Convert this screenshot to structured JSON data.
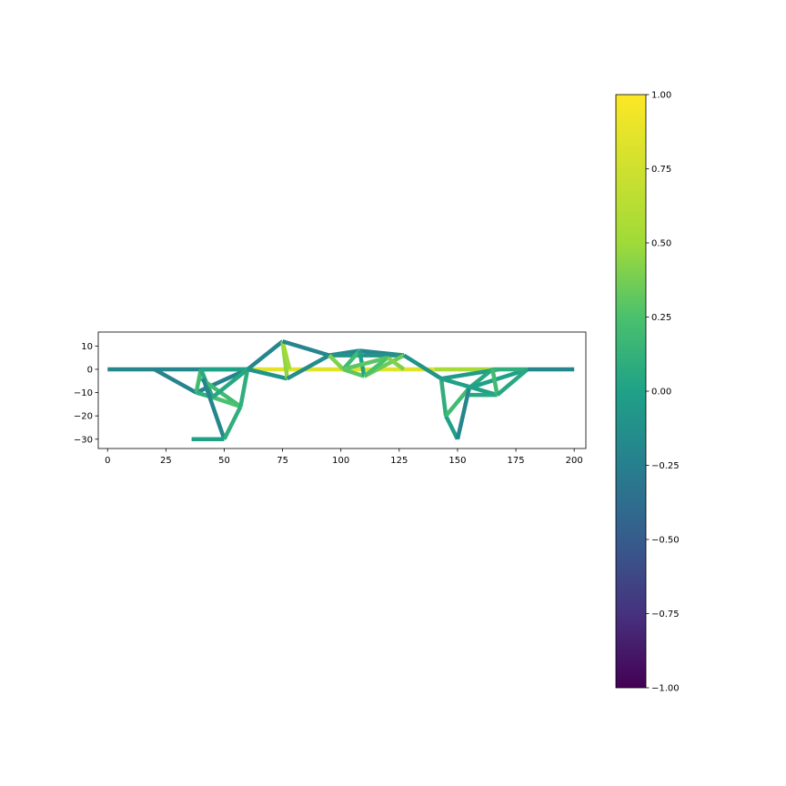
{
  "chart_data": [
    {
      "type": "line",
      "title": "",
      "xlabel": "",
      "ylabel": "",
      "xlim": [
        -4,
        205
      ],
      "ylim": [
        -34,
        16
      ],
      "xticks": [
        0,
        25,
        50,
        75,
        100,
        125,
        150,
        175,
        200
      ],
      "yticks": [
        10,
        0,
        -10,
        -20,
        -30
      ],
      "xtick_labels": [
        "0",
        "25",
        "50",
        "75",
        "100",
        "125",
        "150",
        "175",
        "200"
      ],
      "ytick_labels": [
        "10",
        "0",
        "−10",
        "−20",
        "−30"
      ],
      "grid": false,
      "color_scale": "viridis",
      "series": [
        {
          "x": [
            0,
            20
          ],
          "y": [
            0,
            0
          ],
          "value": -0.2
        },
        {
          "x": [
            20,
            60
          ],
          "y": [
            0,
            0
          ],
          "value": -0.2
        },
        {
          "x": [
            20,
            38
          ],
          "y": [
            0,
            -10
          ],
          "value": -0.22
        },
        {
          "x": [
            38,
            60
          ],
          "y": [
            -10,
            0
          ],
          "value": -0.22
        },
        {
          "x": [
            40,
            60
          ],
          "y": [
            0,
            0
          ],
          "value": 0.0
        },
        {
          "x": [
            40,
            38
          ],
          "y": [
            0,
            -10
          ],
          "value": 0.2
        },
        {
          "x": [
            38,
            45
          ],
          "y": [
            -10,
            -12
          ],
          "value": 0.1
        },
        {
          "x": [
            40,
            45
          ],
          "y": [
            0,
            -12
          ],
          "value": 0.05
        },
        {
          "x": [
            40,
            57
          ],
          "y": [
            -4,
            -16
          ],
          "value": 0.2
        },
        {
          "x": [
            45,
            57
          ],
          "y": [
            -12,
            -16
          ],
          "value": 0.25
        },
        {
          "x": [
            41,
            50
          ],
          "y": [
            -4,
            -30
          ],
          "value": -0.2
        },
        {
          "x": [
            50,
            57
          ],
          "y": [
            -30,
            -16
          ],
          "value": 0.1
        },
        {
          "x": [
            57,
            60
          ],
          "y": [
            -16,
            0
          ],
          "value": 0.1
        },
        {
          "x": [
            45,
            60
          ],
          "y": [
            -12,
            0
          ],
          "value": 0.05
        },
        {
          "x": [
            36,
            50
          ],
          "y": [
            -30,
            -30
          ],
          "value": 0.0
        },
        {
          "x": [
            60,
            140
          ],
          "y": [
            0,
            0
          ],
          "value": 0.85
        },
        {
          "x": [
            60,
            75
          ],
          "y": [
            0,
            12
          ],
          "value": -0.2
        },
        {
          "x": [
            60,
            77
          ],
          "y": [
            0,
            -4
          ],
          "value": -0.1
        },
        {
          "x": [
            75,
            77
          ],
          "y": [
            12,
            -4
          ],
          "value": 0.45
        },
        {
          "x": [
            75,
            78
          ],
          "y": [
            12,
            0
          ],
          "value": 0.5
        },
        {
          "x": [
            75,
            95
          ],
          "y": [
            12,
            6
          ],
          "value": -0.2
        },
        {
          "x": [
            77,
            95
          ],
          "y": [
            -4,
            6
          ],
          "value": -0.15
        },
        {
          "x": [
            95,
            108
          ],
          "y": [
            6,
            8
          ],
          "value": -0.2
        },
        {
          "x": [
            108,
            127
          ],
          "y": [
            8,
            6
          ],
          "value": -0.2
        },
        {
          "x": [
            95,
            127
          ],
          "y": [
            6,
            6
          ],
          "value": -0.1
        },
        {
          "x": [
            95,
            101
          ],
          "y": [
            6,
            0
          ],
          "value": 0.4
        },
        {
          "x": [
            101,
            108
          ],
          "y": [
            0,
            8
          ],
          "value": 0.2
        },
        {
          "x": [
            101,
            110
          ],
          "y": [
            0,
            -3
          ],
          "value": 0.3
        },
        {
          "x": [
            108,
            110
          ],
          "y": [
            8,
            -3
          ],
          "value": 0.0
        },
        {
          "x": [
            110,
            127
          ],
          "y": [
            -3,
            6
          ],
          "value": 0.35
        },
        {
          "x": [
            101,
            120
          ],
          "y": [
            0,
            5
          ],
          "value": 0.3
        },
        {
          "x": [
            110,
            120
          ],
          "y": [
            -3,
            5
          ],
          "value": 0.25
        },
        {
          "x": [
            120,
            127
          ],
          "y": [
            5,
            0
          ],
          "value": 0.4
        },
        {
          "x": [
            127,
            143
          ],
          "y": [
            6,
            -4
          ],
          "value": -0.1
        },
        {
          "x": [
            140,
            165
          ],
          "y": [
            0,
            0
          ],
          "value": 0.55
        },
        {
          "x": [
            143,
            145
          ],
          "y": [
            -4,
            -20
          ],
          "value": 0.1
        },
        {
          "x": [
            145,
            150
          ],
          "y": [
            -20,
            -30
          ],
          "value": 0.0
        },
        {
          "x": [
            145,
            155
          ],
          "y": [
            -20,
            -8
          ],
          "value": 0.2
        },
        {
          "x": [
            150,
            155
          ],
          "y": [
            -30,
            -8
          ],
          "value": -0.2
        },
        {
          "x": [
            143,
            168
          ],
          "y": [
            -4,
            0
          ],
          "value": -0.05
        },
        {
          "x": [
            143,
            167
          ],
          "y": [
            -4,
            -11
          ],
          "value": 0.0
        },
        {
          "x": [
            155,
            167
          ],
          "y": [
            -11,
            -11
          ],
          "value": 0.05
        },
        {
          "x": [
            155,
            165
          ],
          "y": [
            -8,
            0
          ],
          "value": 0.05
        },
        {
          "x": [
            155,
            180
          ],
          "y": [
            -8,
            0
          ],
          "value": 0.0
        },
        {
          "x": [
            165,
            180
          ],
          "y": [
            0,
            0
          ],
          "value": 0.1
        },
        {
          "x": [
            165,
            167
          ],
          "y": [
            0,
            -11
          ],
          "value": 0.2
        },
        {
          "x": [
            167,
            180
          ],
          "y": [
            -11,
            0
          ],
          "value": 0.05
        },
        {
          "x": [
            180,
            200
          ],
          "y": [
            0,
            0
          ],
          "value": -0.2
        }
      ]
    },
    {
      "type": "heatmap",
      "role": "colorbar",
      "color_scale": "viridis",
      "ylim": [
        -1,
        1
      ],
      "ticks": [
        1.0,
        0.75,
        0.5,
        0.25,
        0.0,
        -0.25,
        -0.5,
        -0.75,
        -1.0
      ],
      "tick_labels": [
        "1.00",
        "0.75",
        "0.50",
        "0.25",
        "0.00",
        "−0.25",
        "−0.50",
        "−0.75",
        "−1.00"
      ]
    }
  ]
}
